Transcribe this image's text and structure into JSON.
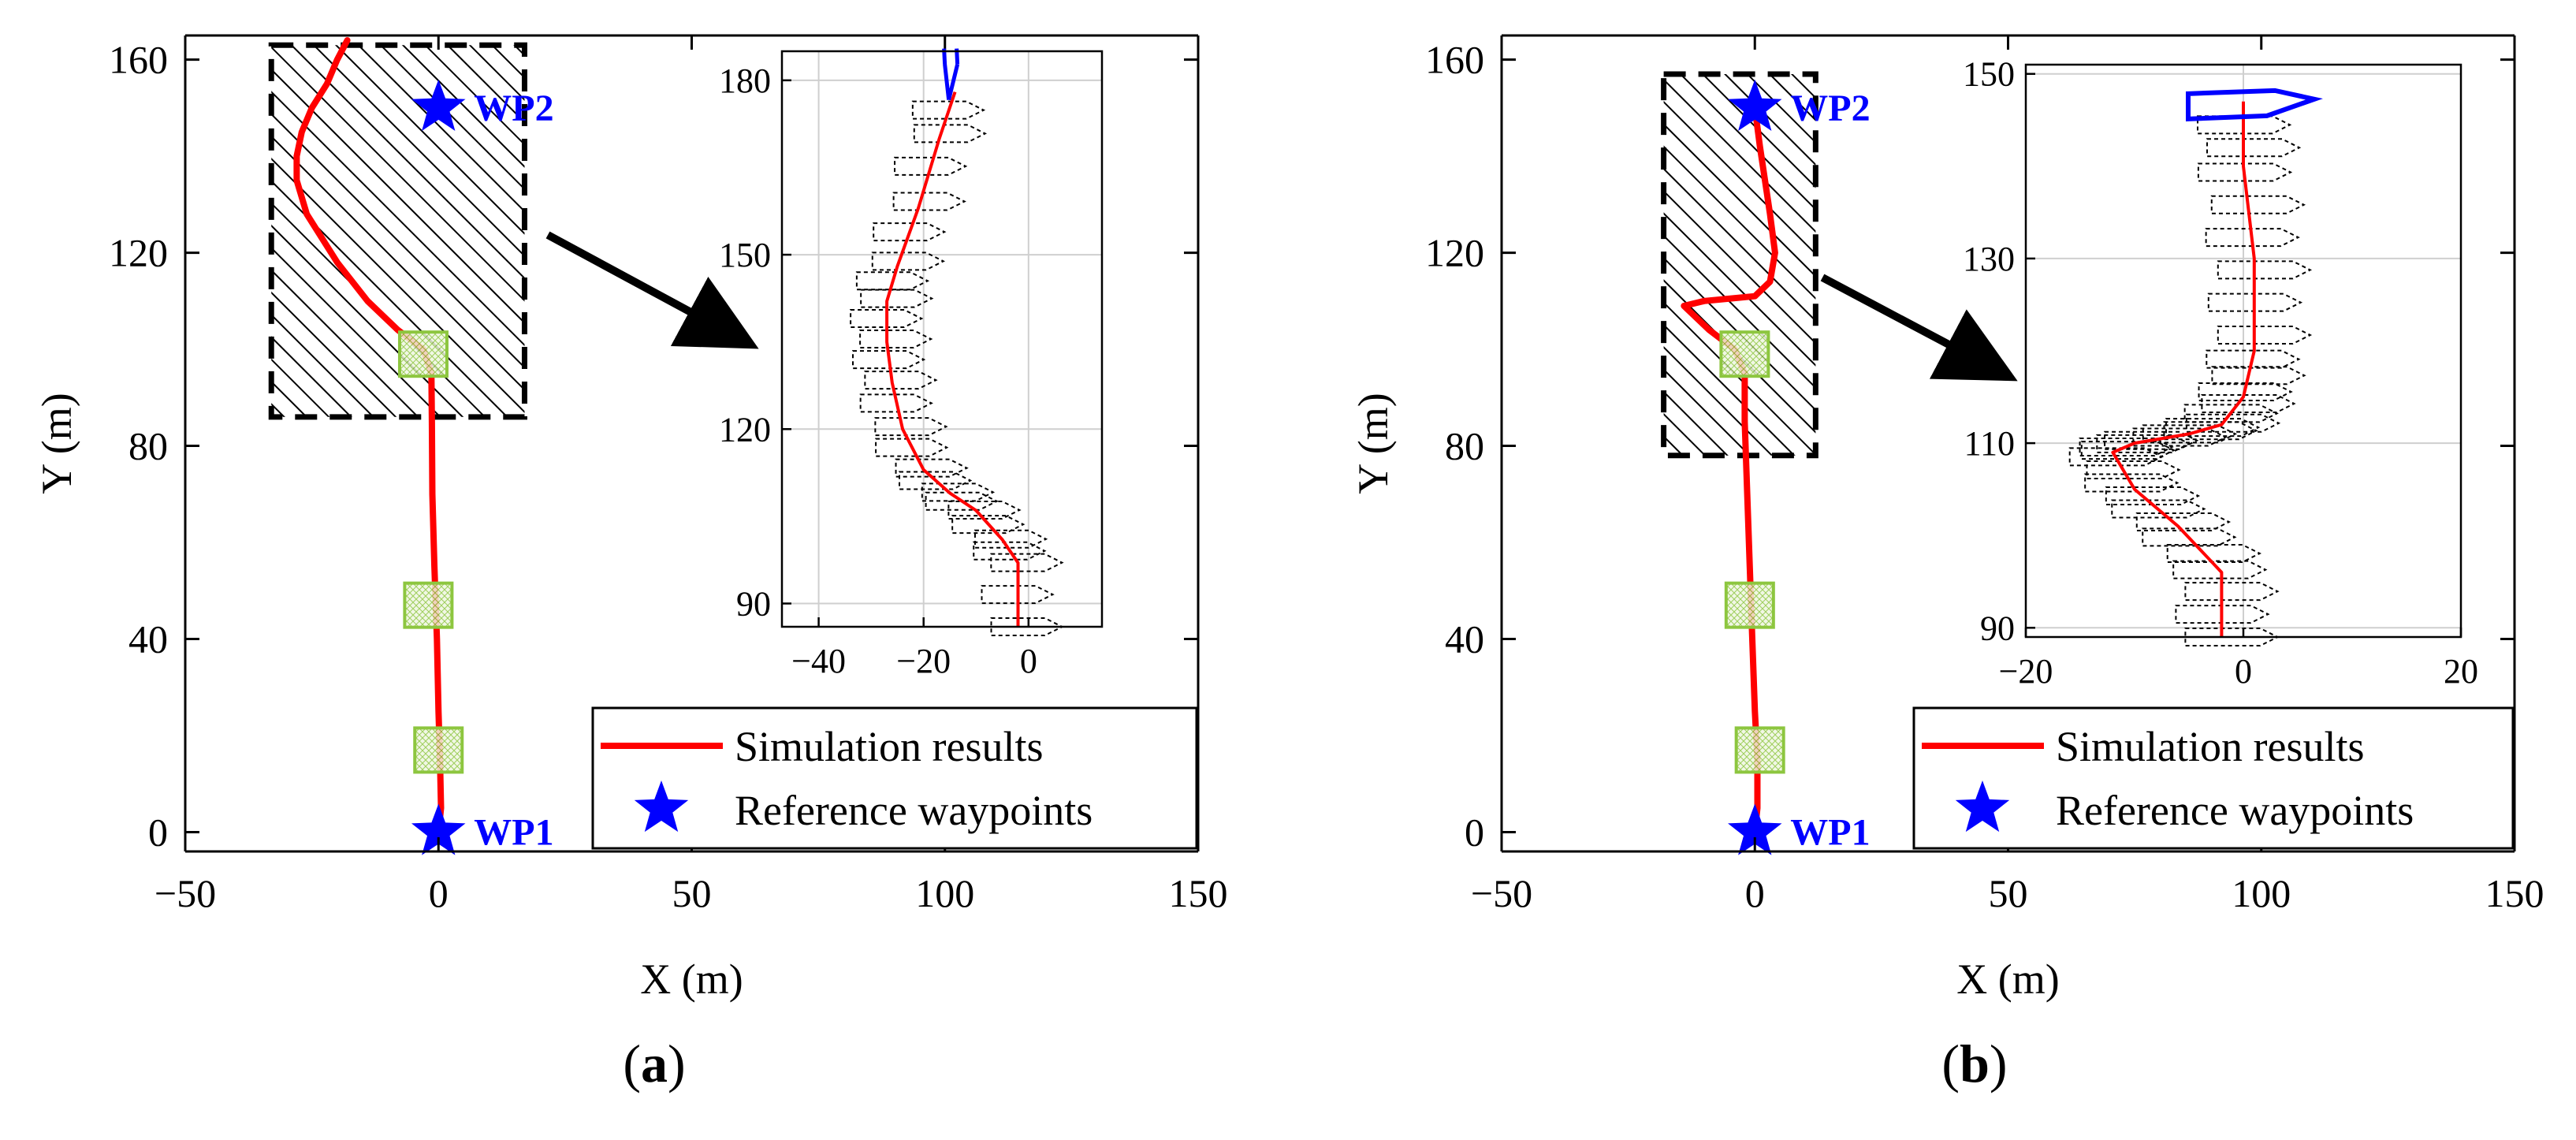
{
  "colors": {
    "trajectory": "#ff0000",
    "waypoint": "#0000ff",
    "obstacle": "#000000",
    "marker_box": "#8dc63f",
    "ship_outline": "#000000",
    "ship_final": "#0000ff"
  },
  "chart_data": [
    {
      "type": "line",
      "panel_label": "(a)",
      "title": "",
      "xlabel": "X (m)",
      "ylabel": "Y (m)",
      "xlim": [
        -50,
        150
      ],
      "ylim": [
        -4,
        165
      ],
      "xticks": [
        -50,
        0,
        50,
        100,
        150
      ],
      "xtick_labels": [
        "−50",
        "0",
        "50",
        "100",
        "150"
      ],
      "yticks": [
        0,
        40,
        80,
        120,
        160
      ],
      "ytick_labels": [
        "0",
        "40",
        "80",
        "120",
        "160"
      ],
      "grid": false,
      "legend": {
        "position": "bottom-right",
        "entries": [
          "Simulation results",
          "Reference waypoints"
        ]
      },
      "series": [
        {
          "name": "Simulation results",
          "points": [
            [
              0,
              0
            ],
            [
              0.5,
              5
            ],
            [
              0.3,
              15
            ],
            [
              0,
              25
            ],
            [
              -0.3,
              40
            ],
            [
              -0.8,
              55
            ],
            [
              -1.2,
              70
            ],
            [
              -1.3,
              85
            ],
            [
              -1.4,
              95
            ],
            [
              -3,
              100
            ],
            [
              -8,
              104
            ],
            [
              -14,
              110
            ],
            [
              -20,
              118
            ],
            [
              -26,
              128
            ],
            [
              -28,
              135
            ],
            [
              -28,
              140
            ],
            [
              -27,
              145
            ],
            [
              -25,
              150
            ],
            [
              -22,
              155
            ],
            [
              -20,
              160
            ],
            [
              -18,
              164
            ]
          ]
        }
      ],
      "waypoints": [
        {
          "label": "WP1",
          "x": 0,
          "y": 0
        },
        {
          "label": "WP2",
          "x": 0,
          "y": 150
        }
      ],
      "obstacle": {
        "x": [
          -33,
          17
        ],
        "y": [
          86,
          163
        ]
      },
      "marker_boxes": [
        [
          -3,
          99
        ],
        [
          -2,
          47
        ],
        [
          0,
          17
        ]
      ],
      "inset": {
        "xlim": [
          -47,
          14
        ],
        "ylim": [
          86,
          185
        ],
        "xticks": [
          -40,
          -20,
          0
        ],
        "xtick_labels": [
          "−40",
          "−20",
          "0"
        ],
        "yticks": [
          90,
          120,
          150,
          180
        ],
        "yticks_labels": [
          "90",
          "120",
          "150",
          "180"
        ],
        "grid": true,
        "trajectory": [
          [
            -2,
            86
          ],
          [
            -2,
            97
          ],
          [
            -5,
            101
          ],
          [
            -10,
            106
          ],
          [
            -15,
            109
          ],
          [
            -20,
            113
          ],
          [
            -24,
            120
          ],
          [
            -26,
            128
          ],
          [
            -27,
            135
          ],
          [
            -27,
            142
          ],
          [
            -25,
            148
          ],
          [
            -21,
            158
          ],
          [
            -17,
            170
          ],
          [
            -14,
            178
          ]
        ]
      }
    },
    {
      "type": "line",
      "panel_label": "(b)",
      "title": "",
      "xlabel": "X (m)",
      "ylabel": "Y (m)",
      "xlim": [
        -50,
        150
      ],
      "ylim": [
        -4,
        165
      ],
      "xticks": [
        -50,
        0,
        50,
        100,
        150
      ],
      "xtick_labels": [
        "−50",
        "0",
        "50",
        "100",
        "150"
      ],
      "yticks": [
        0,
        40,
        80,
        120,
        160
      ],
      "ytick_labels": [
        "0",
        "40",
        "80",
        "120",
        "160"
      ],
      "grid": false,
      "legend": {
        "position": "bottom-right",
        "entries": [
          "Simulation results",
          "Reference waypoints"
        ]
      },
      "series": [
        {
          "name": "Simulation results",
          "points": [
            [
              0,
              0
            ],
            [
              0.5,
              5
            ],
            [
              0.5,
              15
            ],
            [
              0,
              25
            ],
            [
              -0.5,
              40
            ],
            [
              -1,
              55
            ],
            [
              -1.5,
              70
            ],
            [
              -2,
              85
            ],
            [
              -2,
              95
            ],
            [
              -4,
              100
            ],
            [
              -9,
              104
            ],
            [
              -14,
              109
            ],
            [
              -10,
              110
            ],
            [
              0,
              111
            ],
            [
              3,
              114
            ],
            [
              4,
              120
            ],
            [
              3,
              128
            ],
            [
              2,
              135
            ],
            [
              1,
              142
            ],
            [
              0,
              150
            ]
          ]
        }
      ],
      "waypoints": [
        {
          "label": "WP1",
          "x": 0,
          "y": 0
        },
        {
          "label": "WP2",
          "x": 0,
          "y": 150
        }
      ],
      "obstacle": {
        "x": [
          -18,
          12
        ],
        "y": [
          78,
          157
        ]
      },
      "marker_boxes": [
        [
          -2,
          99
        ],
        [
          -1,
          47
        ],
        [
          1,
          17
        ]
      ],
      "inset": {
        "xlim": [
          -20,
          20
        ],
        "ylim": [
          89,
          151
        ],
        "xticks": [
          -20,
          0,
          20
        ],
        "xtick_labels": [
          "−20",
          "0",
          "20"
        ],
        "yticks": [
          90,
          110,
          130,
          150
        ],
        "yticks_labels": [
          "90",
          "110",
          "130",
          "150"
        ],
        "grid": true,
        "trajectory": [
          [
            -2,
            89
          ],
          [
            -2,
            96
          ],
          [
            -6,
            101
          ],
          [
            -10,
            105
          ],
          [
            -12,
            109
          ],
          [
            -10,
            110
          ],
          [
            -5,
            111
          ],
          [
            -2,
            112
          ],
          [
            0,
            115
          ],
          [
            1,
            120
          ],
          [
            1,
            130
          ],
          [
            0,
            140
          ],
          [
            0,
            147
          ]
        ]
      }
    }
  ]
}
